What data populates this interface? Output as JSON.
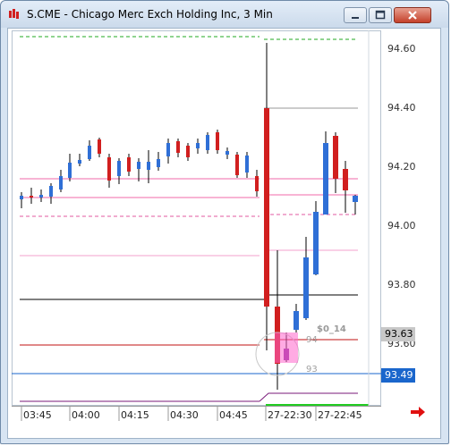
{
  "window": {
    "title": "S.CME - Chicago Merc Exch Holding Inc, 3 Min"
  },
  "price_axis": {
    "labels": [
      "94.60",
      "94.40",
      "94.20",
      "94.00",
      "93.80",
      "93.60"
    ],
    "current_price": "93.63",
    "current_price_color": "#c8c8c8",
    "marker_price": "93.49",
    "marker_color": "#1a66cc"
  },
  "time_axis": {
    "labels": [
      "03:45",
      "04:00",
      "04:15",
      "04:30",
      "04:45",
      "27-22:30",
      "27-22:45"
    ]
  },
  "order": {
    "pnl_label": "$0_14",
    "upper_level": "94",
    "lower_level": "93"
  },
  "colors": {
    "up_candle": "#2f6fd6",
    "down_candle": "#d11f1f",
    "accent_arrow": "#e01010"
  }
}
